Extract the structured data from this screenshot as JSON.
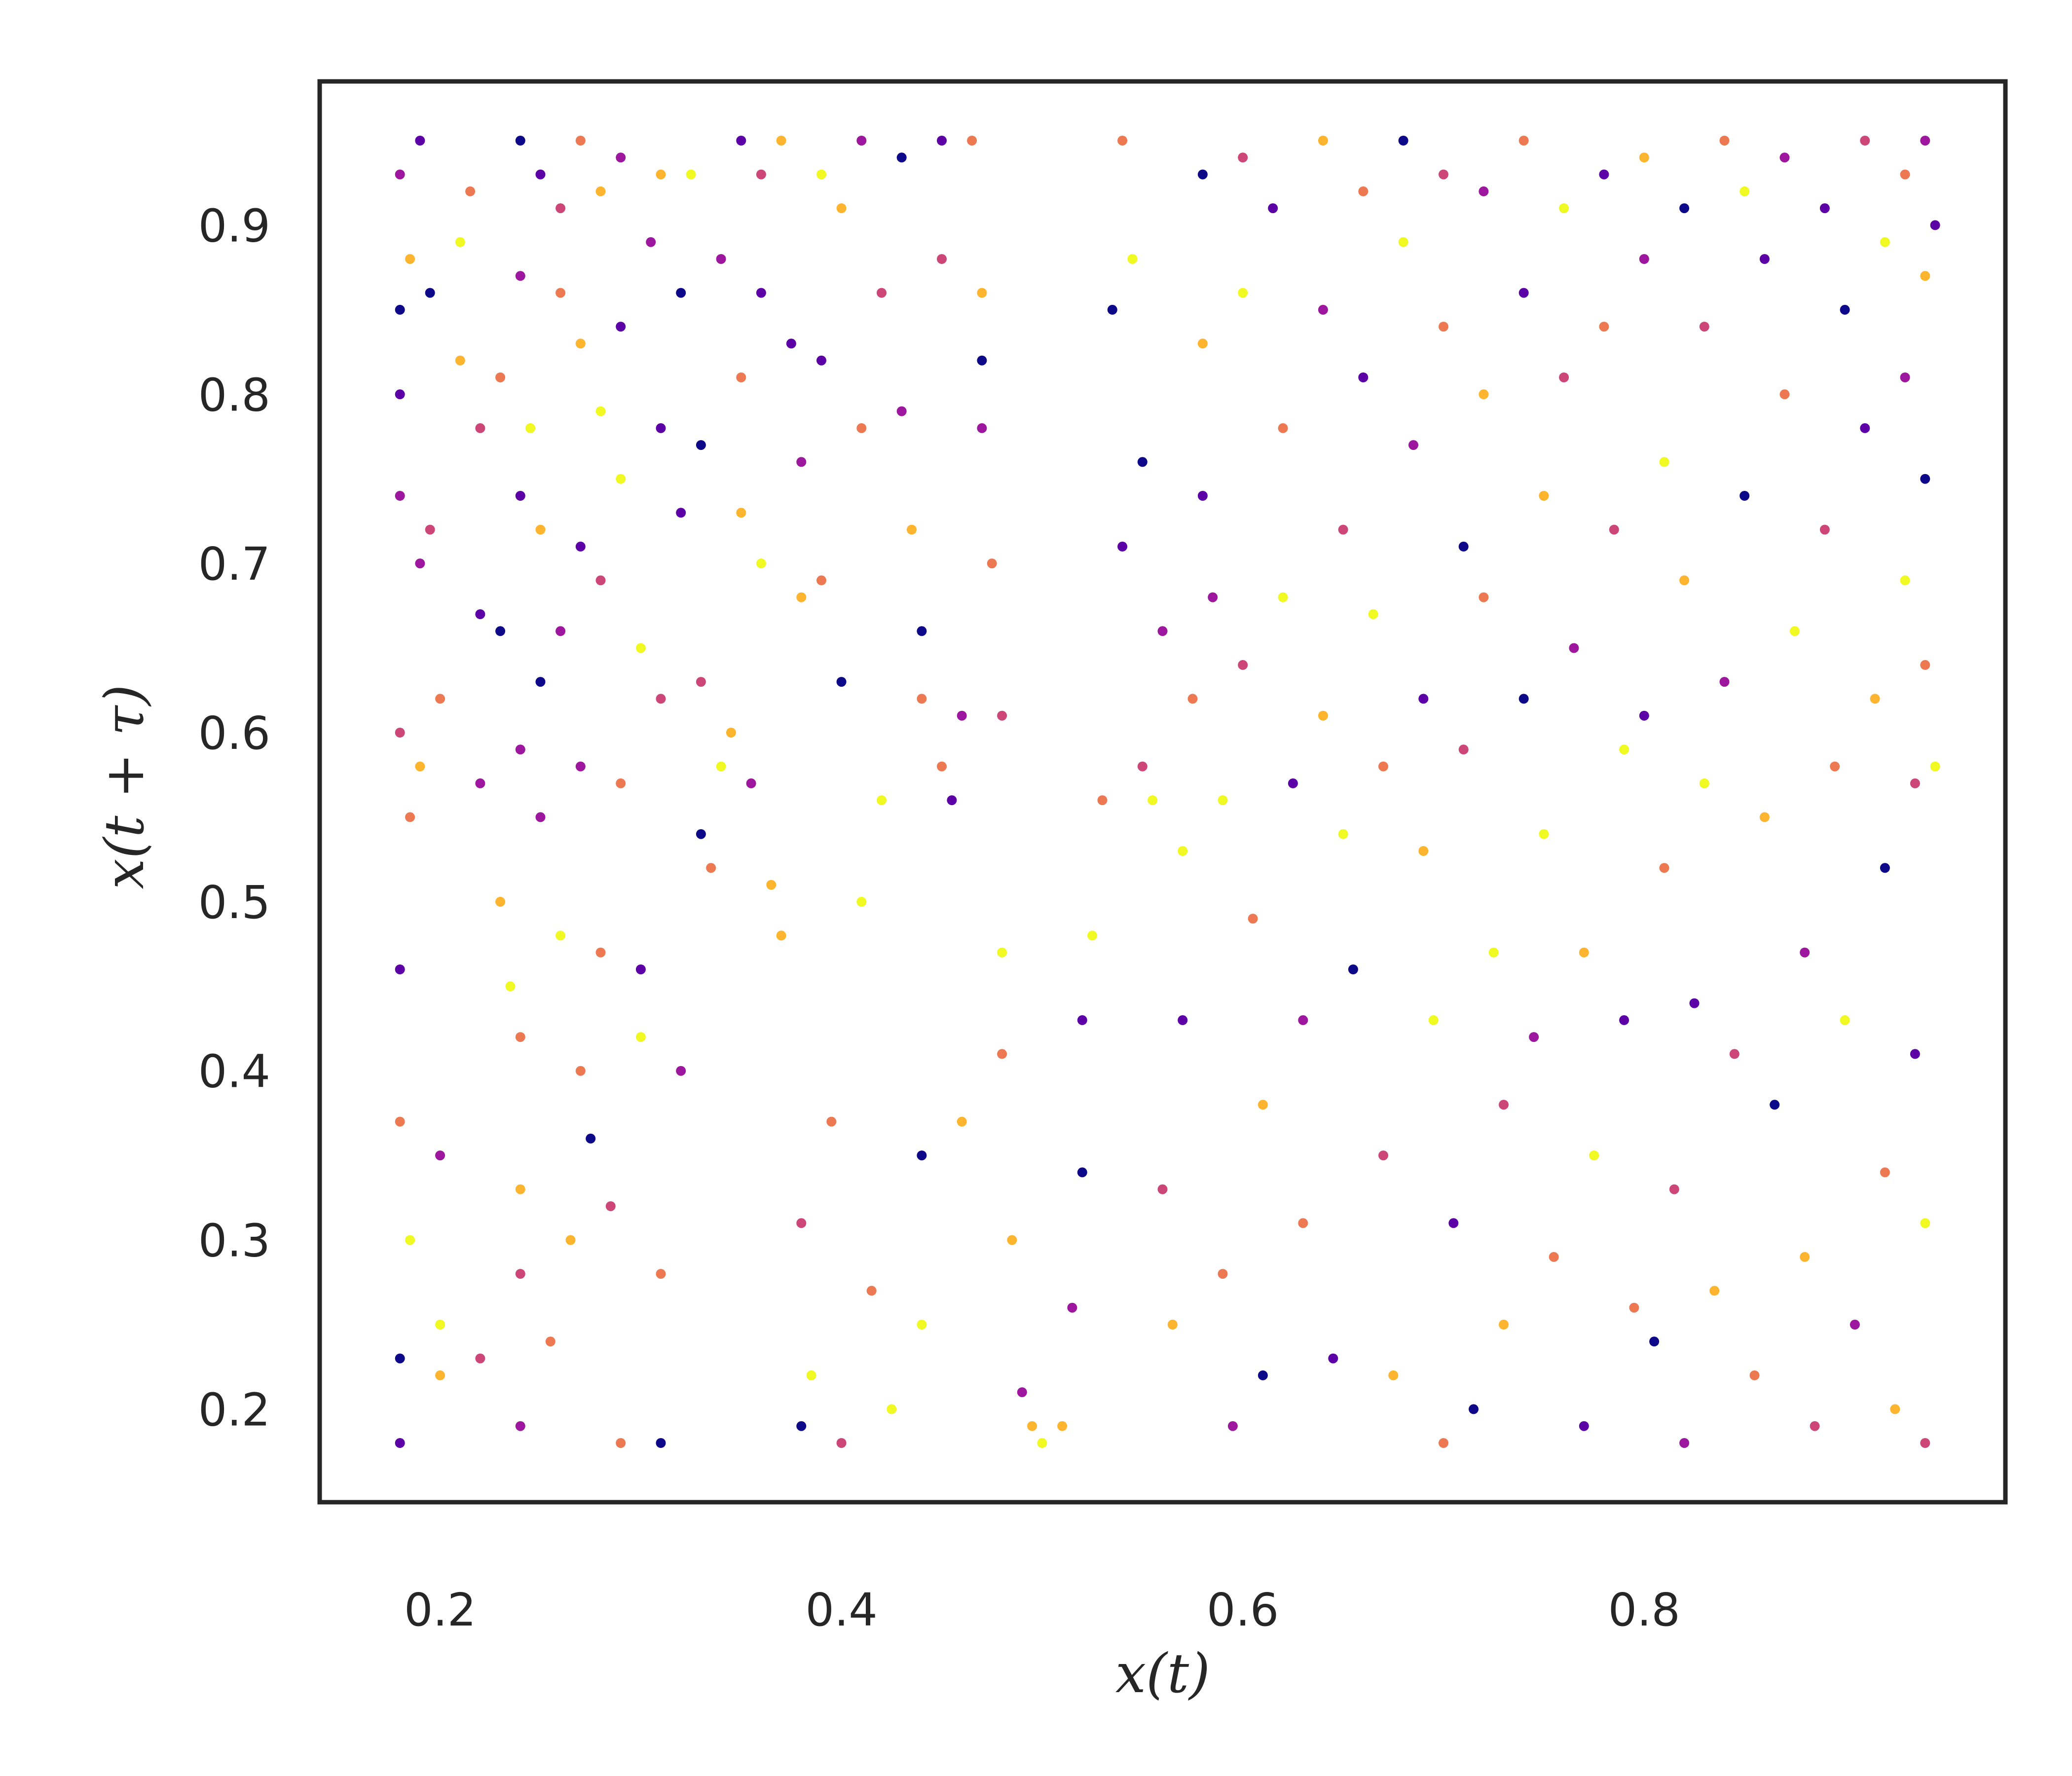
{
  "chart_data": {
    "type": "scatter",
    "title": "",
    "xlabel": "x(t)",
    "ylabel": "x(t + τ)",
    "xlim": [
      0.14,
      0.98
    ],
    "ylim": [
      0.145,
      0.985
    ],
    "xticks": [
      0.2,
      0.4,
      0.6,
      0.8
    ],
    "yticks": [
      0.2,
      0.3,
      0.4,
      0.5,
      0.6,
      0.7,
      0.8,
      0.9
    ],
    "xtick_labels": [
      "0.2",
      "0.4",
      "0.6",
      "0.8"
    ],
    "ytick_labels": [
      "0.2",
      "0.3",
      "0.4",
      "0.5",
      "0.6",
      "0.7",
      "0.8",
      "0.9"
    ],
    "grid": false,
    "legend": "none",
    "colormap": "plasma",
    "palette": [
      "#0d0887",
      "#5c01a6",
      "#9c179e",
      "#cc4778",
      "#ed7953",
      "#fdb42f",
      "#f0f921"
    ],
    "frame_color": "#262626",
    "points": [
      [
        0.18,
        0.93,
        2
      ],
      [
        0.18,
        0.85,
        0
      ],
      [
        0.18,
        0.8,
        1
      ],
      [
        0.18,
        0.74,
        2
      ],
      [
        0.18,
        0.6,
        3
      ],
      [
        0.18,
        0.46,
        1
      ],
      [
        0.18,
        0.37,
        4
      ],
      [
        0.18,
        0.23,
        0
      ],
      [
        0.18,
        0.18,
        1
      ],
      [
        0.185,
        0.88,
        5
      ],
      [
        0.185,
        0.55,
        4
      ],
      [
        0.185,
        0.3,
        6
      ],
      [
        0.19,
        0.95,
        1
      ],
      [
        0.19,
        0.7,
        2
      ],
      [
        0.19,
        0.58,
        5
      ],
      [
        0.195,
        0.86,
        0
      ],
      [
        0.195,
        0.72,
        3
      ],
      [
        0.2,
        0.62,
        4
      ],
      [
        0.2,
        0.35,
        2
      ],
      [
        0.2,
        0.25,
        6
      ],
      [
        0.2,
        0.22,
        5
      ],
      [
        0.21,
        0.89,
        6
      ],
      [
        0.21,
        0.82,
        5
      ],
      [
        0.215,
        0.92,
        4
      ],
      [
        0.22,
        0.78,
        3
      ],
      [
        0.22,
        0.67,
        1
      ],
      [
        0.22,
        0.57,
        2
      ],
      [
        0.22,
        0.23,
        3
      ],
      [
        0.23,
        0.81,
        4
      ],
      [
        0.23,
        0.66,
        0
      ],
      [
        0.23,
        0.5,
        5
      ],
      [
        0.235,
        0.45,
        6
      ],
      [
        0.24,
        0.95,
        0
      ],
      [
        0.24,
        0.87,
        2
      ],
      [
        0.24,
        0.74,
        1
      ],
      [
        0.24,
        0.59,
        2
      ],
      [
        0.24,
        0.42,
        4
      ],
      [
        0.24,
        0.33,
        5
      ],
      [
        0.24,
        0.28,
        3
      ],
      [
        0.24,
        0.19,
        2
      ],
      [
        0.245,
        0.78,
        6
      ],
      [
        0.25,
        0.93,
        1
      ],
      [
        0.25,
        0.72,
        5
      ],
      [
        0.25,
        0.63,
        0
      ],
      [
        0.25,
        0.55,
        2
      ],
      [
        0.255,
        0.24,
        4
      ],
      [
        0.26,
        0.91,
        3
      ],
      [
        0.26,
        0.86,
        4
      ],
      [
        0.26,
        0.66,
        2
      ],
      [
        0.26,
        0.48,
        6
      ],
      [
        0.265,
        0.3,
        5
      ],
      [
        0.27,
        0.95,
        4
      ],
      [
        0.27,
        0.83,
        5
      ],
      [
        0.27,
        0.71,
        1
      ],
      [
        0.27,
        0.58,
        2
      ],
      [
        0.27,
        0.4,
        4
      ],
      [
        0.275,
        0.36,
        0
      ],
      [
        0.28,
        0.92,
        5
      ],
      [
        0.28,
        0.79,
        6
      ],
      [
        0.28,
        0.69,
        3
      ],
      [
        0.28,
        0.47,
        4
      ],
      [
        0.285,
        0.32,
        3
      ],
      [
        0.29,
        0.94,
        2
      ],
      [
        0.29,
        0.84,
        1
      ],
      [
        0.29,
        0.75,
        6
      ],
      [
        0.29,
        0.57,
        4
      ],
      [
        0.29,
        0.18,
        4
      ],
      [
        0.3,
        0.65,
        6
      ],
      [
        0.3,
        0.46,
        1
      ],
      [
        0.3,
        0.42,
        6
      ],
      [
        0.305,
        0.89,
        2
      ],
      [
        0.31,
        0.93,
        5
      ],
      [
        0.31,
        0.78,
        1
      ],
      [
        0.31,
        0.62,
        3
      ],
      [
        0.31,
        0.28,
        4
      ],
      [
        0.31,
        0.18,
        0
      ],
      [
        0.32,
        0.86,
        0
      ],
      [
        0.32,
        0.73,
        1
      ],
      [
        0.32,
        0.4,
        2
      ],
      [
        0.325,
        0.93,
        6
      ],
      [
        0.33,
        0.77,
        0
      ],
      [
        0.33,
        0.63,
        3
      ],
      [
        0.33,
        0.54,
        0
      ],
      [
        0.335,
        0.52,
        4
      ],
      [
        0.34,
        0.58,
        6
      ],
      [
        0.34,
        0.88,
        2
      ],
      [
        0.345,
        0.6,
        5
      ],
      [
        0.35,
        0.95,
        1
      ],
      [
        0.35,
        0.81,
        4
      ],
      [
        0.35,
        0.73,
        5
      ],
      [
        0.355,
        0.57,
        2
      ],
      [
        0.36,
        0.93,
        3
      ],
      [
        0.36,
        0.86,
        1
      ],
      [
        0.36,
        0.7,
        6
      ],
      [
        0.365,
        0.51,
        5
      ],
      [
        0.37,
        0.48,
        5
      ],
      [
        0.37,
        0.95,
        5
      ],
      [
        0.375,
        0.83,
        1
      ],
      [
        0.38,
        0.76,
        2
      ],
      [
        0.38,
        0.68,
        5
      ],
      [
        0.38,
        0.31,
        3
      ],
      [
        0.38,
        0.19,
        0
      ],
      [
        0.385,
        0.22,
        6
      ],
      [
        0.39,
        0.93,
        6
      ],
      [
        0.39,
        0.82,
        1
      ],
      [
        0.39,
        0.69,
        4
      ],
      [
        0.395,
        0.37,
        4
      ],
      [
        0.4,
        0.91,
        5
      ],
      [
        0.4,
        0.63,
        0
      ],
      [
        0.4,
        0.18,
        3
      ],
      [
        0.41,
        0.95,
        2
      ],
      [
        0.41,
        0.78,
        4
      ],
      [
        0.41,
        0.5,
        6
      ],
      [
        0.415,
        0.27,
        4
      ],
      [
        0.42,
        0.86,
        3
      ],
      [
        0.42,
        0.56,
        6
      ],
      [
        0.425,
        0.2,
        6
      ],
      [
        0.43,
        0.94,
        0
      ],
      [
        0.43,
        0.79,
        2
      ],
      [
        0.435,
        0.72,
        5
      ],
      [
        0.44,
        0.66,
        0
      ],
      [
        0.44,
        0.62,
        4
      ],
      [
        0.44,
        0.35,
        0
      ],
      [
        0.44,
        0.25,
        6
      ],
      [
        0.45,
        0.95,
        1
      ],
      [
        0.45,
        0.88,
        3
      ],
      [
        0.45,
        0.58,
        4
      ],
      [
        0.455,
        0.56,
        1
      ],
      [
        0.46,
        0.61,
        2
      ],
      [
        0.46,
        0.37,
        5
      ],
      [
        0.465,
        0.95,
        4
      ],
      [
        0.47,
        0.86,
        5
      ],
      [
        0.47,
        0.82,
        0
      ],
      [
        0.47,
        0.78,
        2
      ],
      [
        0.475,
        0.7,
        4
      ],
      [
        0.48,
        0.61,
        3
      ],
      [
        0.48,
        0.47,
        6
      ],
      [
        0.48,
        0.41,
        4
      ],
      [
        0.485,
        0.3,
        5
      ],
      [
        0.49,
        0.21,
        2
      ],
      [
        0.495,
        0.19,
        5
      ],
      [
        0.5,
        0.18,
        6
      ],
      [
        0.51,
        0.19,
        5
      ],
      [
        0.515,
        0.26,
        2
      ],
      [
        0.52,
        0.34,
        0
      ],
      [
        0.52,
        0.43,
        1
      ],
      [
        0.525,
        0.48,
        6
      ],
      [
        0.53,
        0.56,
        4
      ],
      [
        0.535,
        0.85,
        0
      ],
      [
        0.54,
        0.71,
        1
      ],
      [
        0.54,
        0.95,
        4
      ],
      [
        0.545,
        0.88,
        6
      ],
      [
        0.55,
        0.58,
        3
      ],
      [
        0.55,
        0.76,
        0
      ],
      [
        0.555,
        0.56,
        6
      ],
      [
        0.56,
        0.66,
        2
      ],
      [
        0.56,
        0.33,
        3
      ],
      [
        0.565,
        0.25,
        5
      ],
      [
        0.57,
        0.43,
        1
      ],
      [
        0.57,
        0.53,
        6
      ],
      [
        0.575,
        0.62,
        4
      ],
      [
        0.58,
        0.93,
        0
      ],
      [
        0.58,
        0.83,
        5
      ],
      [
        0.58,
        0.74,
        1
      ],
      [
        0.585,
        0.68,
        2
      ],
      [
        0.59,
        0.56,
        6
      ],
      [
        0.59,
        0.28,
        4
      ],
      [
        0.595,
        0.19,
        2
      ],
      [
        0.6,
        0.94,
        3
      ],
      [
        0.6,
        0.86,
        6
      ],
      [
        0.6,
        0.64,
        3
      ],
      [
        0.605,
        0.49,
        4
      ],
      [
        0.61,
        0.38,
        5
      ],
      [
        0.61,
        0.22,
        0
      ],
      [
        0.615,
        0.91,
        1
      ],
      [
        0.62,
        0.78,
        4
      ],
      [
        0.62,
        0.68,
        6
      ],
      [
        0.625,
        0.57,
        1
      ],
      [
        0.63,
        0.43,
        2
      ],
      [
        0.63,
        0.31,
        4
      ],
      [
        0.64,
        0.95,
        5
      ],
      [
        0.64,
        0.85,
        2
      ],
      [
        0.64,
        0.61,
        5
      ],
      [
        0.645,
        0.23,
        1
      ],
      [
        0.65,
        0.72,
        3
      ],
      [
        0.65,
        0.54,
        6
      ],
      [
        0.655,
        0.46,
        0
      ],
      [
        0.66,
        0.92,
        4
      ],
      [
        0.66,
        0.81,
        1
      ],
      [
        0.665,
        0.67,
        6
      ],
      [
        0.67,
        0.58,
        4
      ],
      [
        0.67,
        0.35,
        3
      ],
      [
        0.675,
        0.22,
        5
      ],
      [
        0.68,
        0.95,
        0
      ],
      [
        0.68,
        0.89,
        6
      ],
      [
        0.685,
        0.77,
        2
      ],
      [
        0.69,
        0.62,
        1
      ],
      [
        0.69,
        0.53,
        5
      ],
      [
        0.695,
        0.43,
        6
      ],
      [
        0.7,
        0.93,
        3
      ],
      [
        0.7,
        0.84,
        4
      ],
      [
        0.7,
        0.18,
        4
      ],
      [
        0.705,
        0.31,
        1
      ],
      [
        0.71,
        0.71,
        0
      ],
      [
        0.71,
        0.59,
        3
      ],
      [
        0.715,
        0.2,
        0
      ],
      [
        0.72,
        0.92,
        2
      ],
      [
        0.72,
        0.8,
        5
      ],
      [
        0.72,
        0.68,
        4
      ],
      [
        0.725,
        0.47,
        6
      ],
      [
        0.73,
        0.38,
        3
      ],
      [
        0.73,
        0.25,
        5
      ],
      [
        0.74,
        0.95,
        4
      ],
      [
        0.74,
        0.86,
        1
      ],
      [
        0.74,
        0.62,
        0
      ],
      [
        0.745,
        0.42,
        2
      ],
      [
        0.75,
        0.74,
        5
      ],
      [
        0.75,
        0.54,
        6
      ],
      [
        0.755,
        0.29,
        4
      ],
      [
        0.76,
        0.91,
        6
      ],
      [
        0.76,
        0.81,
        3
      ],
      [
        0.765,
        0.65,
        2
      ],
      [
        0.77,
        0.47,
        5
      ],
      [
        0.77,
        0.19,
        1
      ],
      [
        0.775,
        0.35,
        6
      ],
      [
        0.78,
        0.93,
        1
      ],
      [
        0.78,
        0.84,
        4
      ],
      [
        0.785,
        0.72,
        3
      ],
      [
        0.79,
        0.59,
        6
      ],
      [
        0.79,
        0.43,
        1
      ],
      [
        0.795,
        0.26,
        4
      ],
      [
        0.8,
        0.94,
        5
      ],
      [
        0.8,
        0.88,
        2
      ],
      [
        0.8,
        0.61,
        1
      ],
      [
        0.805,
        0.24,
        0
      ],
      [
        0.81,
        0.76,
        6
      ],
      [
        0.81,
        0.52,
        4
      ],
      [
        0.815,
        0.33,
        3
      ],
      [
        0.82,
        0.91,
        0
      ],
      [
        0.82,
        0.69,
        5
      ],
      [
        0.82,
        0.18,
        2
      ],
      [
        0.825,
        0.44,
        1
      ],
      [
        0.83,
        0.84,
        3
      ],
      [
        0.83,
        0.57,
        6
      ],
      [
        0.835,
        0.27,
        5
      ],
      [
        0.84,
        0.95,
        4
      ],
      [
        0.84,
        0.63,
        2
      ],
      [
        0.845,
        0.41,
        3
      ],
      [
        0.85,
        0.92,
        6
      ],
      [
        0.85,
        0.74,
        0
      ],
      [
        0.855,
        0.22,
        4
      ],
      [
        0.86,
        0.88,
        1
      ],
      [
        0.86,
        0.55,
        5
      ],
      [
        0.865,
        0.38,
        0
      ],
      [
        0.87,
        0.94,
        2
      ],
      [
        0.87,
        0.8,
        4
      ],
      [
        0.875,
        0.66,
        6
      ],
      [
        0.88,
        0.47,
        2
      ],
      [
        0.88,
        0.29,
        5
      ],
      [
        0.885,
        0.19,
        3
      ],
      [
        0.89,
        0.91,
        1
      ],
      [
        0.89,
        0.72,
        3
      ],
      [
        0.895,
        0.58,
        4
      ],
      [
        0.9,
        0.85,
        0
      ],
      [
        0.9,
        0.43,
        6
      ],
      [
        0.905,
        0.25,
        2
      ],
      [
        0.91,
        0.95,
        3
      ],
      [
        0.91,
        0.78,
        1
      ],
      [
        0.915,
        0.62,
        5
      ],
      [
        0.92,
        0.89,
        6
      ],
      [
        0.92,
        0.52,
        0
      ],
      [
        0.92,
        0.34,
        4
      ],
      [
        0.925,
        0.2,
        5
      ],
      [
        0.93,
        0.93,
        4
      ],
      [
        0.93,
        0.81,
        2
      ],
      [
        0.93,
        0.69,
        6
      ],
      [
        0.935,
        0.57,
        3
      ],
      [
        0.935,
        0.41,
        1
      ],
      [
        0.94,
        0.95,
        2
      ],
      [
        0.94,
        0.87,
        5
      ],
      [
        0.94,
        0.75,
        0
      ],
      [
        0.94,
        0.64,
        4
      ],
      [
        0.94,
        0.31,
        6
      ],
      [
        0.94,
        0.18,
        3
      ],
      [
        0.945,
        0.9,
        1
      ],
      [
        0.945,
        0.58,
        6
      ]
    ]
  }
}
